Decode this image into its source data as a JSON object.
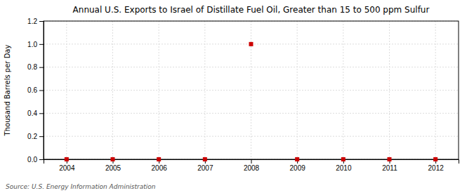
{
  "chart_data": {
    "type": "scatter",
    "title": "Annual U.S. Exports to Israel of Distillate Fuel Oil, Greater than 15 to 500 ppm Sulfur",
    "ylabel": "Thousand Barrels per Day",
    "source": "Source: U.S. Energy Information Administration",
    "x": [
      2004,
      2005,
      2006,
      2007,
      2008,
      2009,
      2010,
      2011,
      2012
    ],
    "values": [
      0.0,
      0.0,
      0.0,
      0.0,
      1.0,
      0.0,
      0.0,
      0.0,
      0.0
    ],
    "color": "#cc0000",
    "marker": "square",
    "xlim": [
      2003.5,
      2012.5
    ],
    "xticks": [
      2004,
      2005,
      2006,
      2007,
      2008,
      2009,
      2010,
      2011,
      2012
    ],
    "ylim": [
      0.0,
      1.2
    ],
    "yticks": [
      {
        "value": 0,
        "label": "0.0"
      },
      0.2,
      0.4,
      0.6,
      0.8,
      {
        "value": 1,
        "label": "1.0"
      },
      1.2
    ],
    "grid": true
  }
}
